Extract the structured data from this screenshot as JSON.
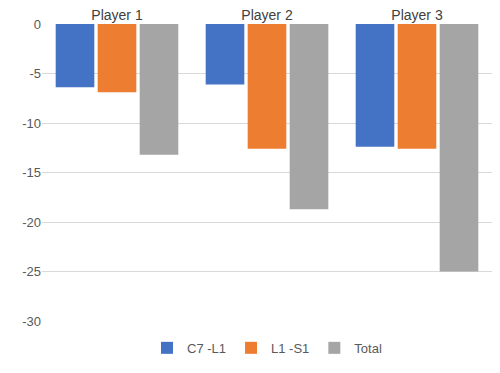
{
  "chart_data": {
    "type": "bar",
    "categories": [
      "Player 1",
      "Player 2",
      "Player 3"
    ],
    "series": [
      {
        "name": "C7 -L1",
        "color": "#4472c4",
        "values": [
          -6.4,
          -6.1,
          -12.4
        ]
      },
      {
        "name": "L1 -S1",
        "color": "#ed7d31",
        "values": [
          -6.9,
          -12.6,
          -12.6
        ]
      },
      {
        "name": "Total",
        "color": "#a5a5a5",
        "values": [
          -13.2,
          -18.7,
          -25
        ]
      }
    ],
    "ylim": [
      -30,
      0
    ],
    "yticks": [
      0,
      -5,
      -10,
      -15,
      -20,
      -25,
      -30
    ],
    "grid": true,
    "legend": "bottom"
  }
}
